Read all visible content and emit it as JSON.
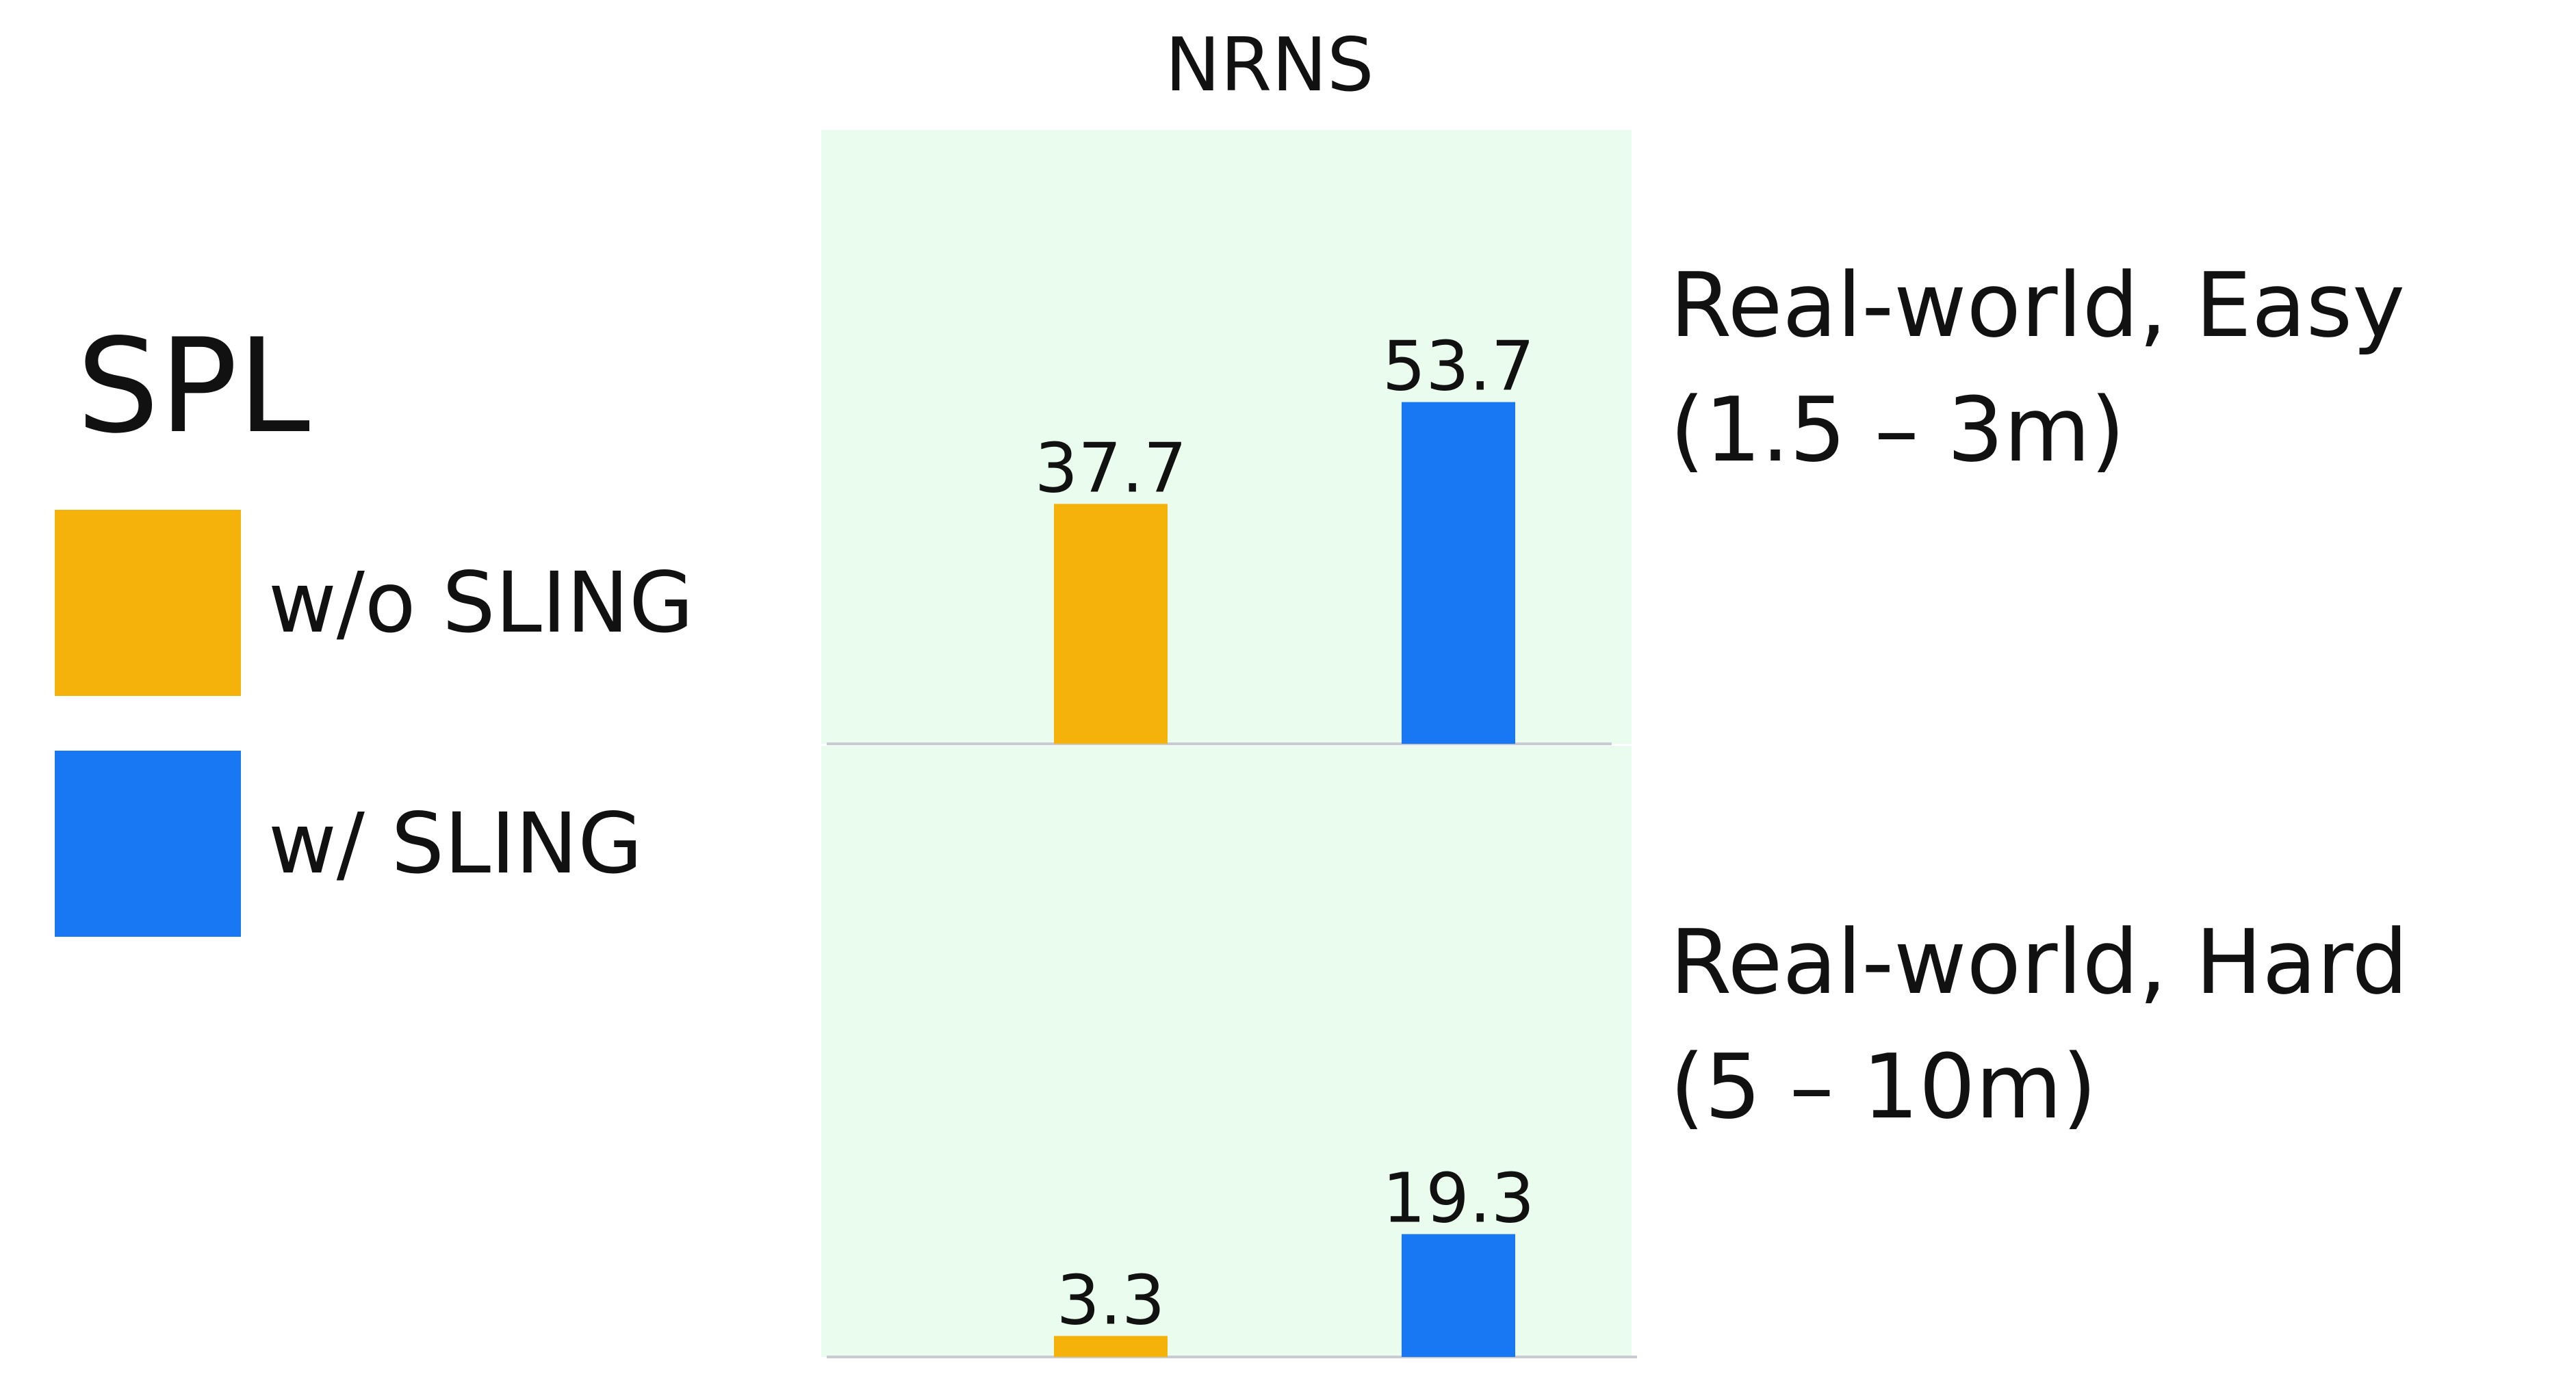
{
  "chart_data": {
    "type": "bar",
    "title": "NRNS",
    "metric_label": "SPL",
    "series": [
      {
        "name": "w/o SLING",
        "color": "#F5B20B"
      },
      {
        "name": "w/ SLING",
        "color": "#1877F2"
      }
    ],
    "panels": [
      {
        "label_line1": "Real-world, Easy",
        "label_line2": "(1.5 – 3m)",
        "values": [
          37.7,
          53.7
        ],
        "value_labels": [
          "37.7",
          "53.7"
        ]
      },
      {
        "label_line1": "Real-world, Hard",
        "label_line2": "(5 – 10m)",
        "values": [
          3.3,
          19.3
        ],
        "value_labels": [
          "3.3",
          "19.3"
        ]
      }
    ],
    "ylim": [
      0,
      65
    ],
    "background_color": "#EAFCEE",
    "grid": false
  }
}
